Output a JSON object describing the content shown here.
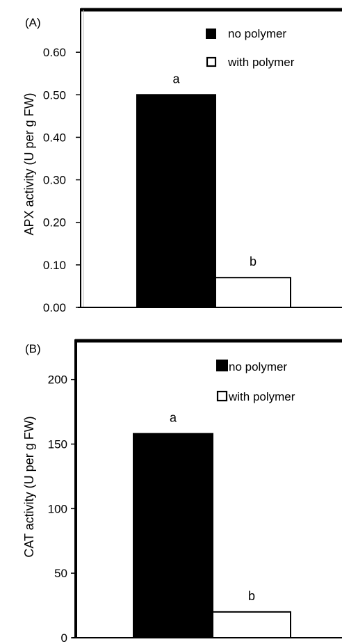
{
  "chart_data": [
    {
      "type": "bar",
      "panel_label": "(A)",
      "ylabel": "APX activity (U per g FW)",
      "ylim": [
        0,
        0.7
      ],
      "yticks": [
        "0.00",
        "0.10",
        "0.20",
        "0.30",
        "0.40",
        "0.50",
        "0.60"
      ],
      "tick_values": [
        0,
        0.1,
        0.2,
        0.3,
        0.4,
        0.5,
        0.6
      ],
      "series": [
        {
          "name": "no polymer",
          "values": [
            0.5
          ],
          "letter": "a",
          "color": "#000000"
        },
        {
          "name": "with polymer",
          "values": [
            0.07
          ],
          "letter": "b",
          "color": "#ffffff"
        }
      ],
      "legend_position": "top-right",
      "grid": false
    },
    {
      "type": "bar",
      "panel_label": "(B)",
      "ylabel": "CAT activity (U per g FW)",
      "ylim": [
        0,
        230
      ],
      "yticks": [
        "0",
        "50",
        "100",
        "150",
        "200"
      ],
      "tick_values": [
        0,
        50,
        100,
        150,
        200
      ],
      "series": [
        {
          "name": "no polymer",
          "values": [
            158
          ],
          "letter": "a",
          "color": "#000000"
        },
        {
          "name": "with polymer",
          "values": [
            20
          ],
          "letter": "b",
          "color": "#ffffff"
        }
      ],
      "legend_position": "top-right",
      "grid": false
    }
  ]
}
